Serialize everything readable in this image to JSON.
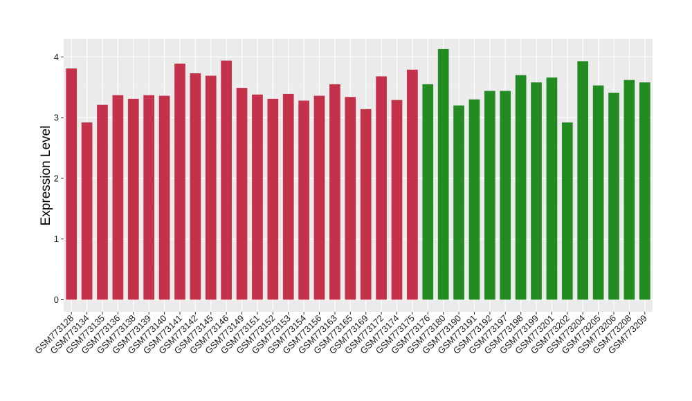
{
  "chart_data": {
    "type": "bar",
    "title": "",
    "xlabel": "",
    "ylabel": "Expression Level",
    "ylim": [
      -0.2,
      4.3
    ],
    "yticks": [
      0,
      1,
      2,
      3,
      4
    ],
    "grid": true,
    "background": "#ebebeb",
    "categories": [
      "GSM773128",
      "GSM773134",
      "GSM773135",
      "GSM773136",
      "GSM773138",
      "GSM773139",
      "GSM773140",
      "GSM773141",
      "GSM773142",
      "GSM773145",
      "GSM773146",
      "GSM773149",
      "GSM773151",
      "GSM773152",
      "GSM773153",
      "GSM773154",
      "GSM773156",
      "GSM773163",
      "GSM773165",
      "GSM773169",
      "GSM773172",
      "GSM773174",
      "GSM773175",
      "GSM773176",
      "GSM773180",
      "GSM773190",
      "GSM773191",
      "GSM773192",
      "GSM773197",
      "GSM773198",
      "GSM773199",
      "GSM773201",
      "GSM773202",
      "GSM773204",
      "GSM773205",
      "GSM773206",
      "GSM773208",
      "GSM773209"
    ],
    "values": [
      3.81,
      2.92,
      3.21,
      3.37,
      3.31,
      3.37,
      3.36,
      3.89,
      3.73,
      3.69,
      3.94,
      3.49,
      3.38,
      3.31,
      3.39,
      3.28,
      3.36,
      3.55,
      3.34,
      3.14,
      3.68,
      3.29,
      3.79,
      3.55,
      4.13,
      3.2,
      3.3,
      3.44,
      3.44,
      3.7,
      3.58,
      3.66,
      2.92,
      3.93,
      3.53,
      3.41,
      3.62,
      3.58
    ],
    "group_colors": [
      "#c3314a",
      "#c3314a",
      "#c3314a",
      "#c3314a",
      "#c3314a",
      "#c3314a",
      "#c3314a",
      "#c3314a",
      "#c3314a",
      "#c3314a",
      "#c3314a",
      "#c3314a",
      "#c3314a",
      "#c3314a",
      "#c3314a",
      "#c3314a",
      "#c3314a",
      "#c3314a",
      "#c3314a",
      "#c3314a",
      "#c3314a",
      "#c3314a",
      "#c3314a",
      "#228b22",
      "#228b22",
      "#228b22",
      "#228b22",
      "#228b22",
      "#228b22",
      "#228b22",
      "#228b22",
      "#228b22",
      "#228b22",
      "#228b22",
      "#228b22",
      "#228b22",
      "#228b22",
      "#228b22"
    ]
  }
}
